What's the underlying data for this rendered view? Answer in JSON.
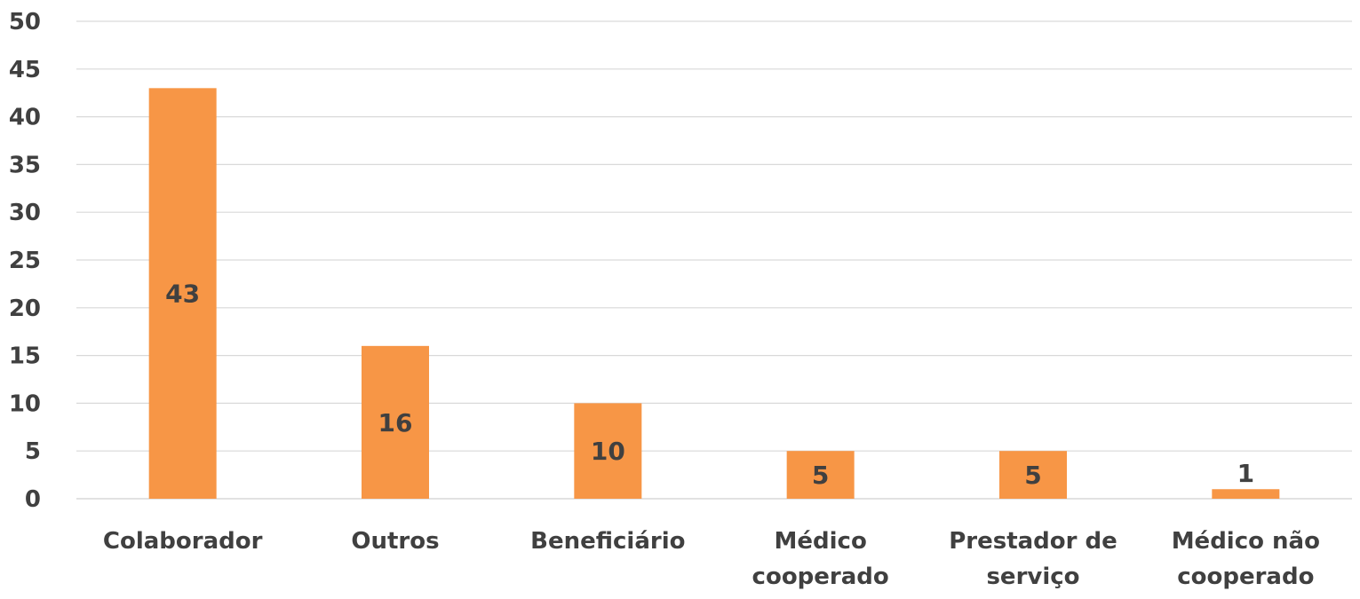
{
  "chart_data": {
    "type": "bar",
    "title": "",
    "xlabel": "",
    "ylabel": "",
    "categories": [
      "Colaborador",
      "Outros",
      "Beneficiário",
      "Médico cooperado",
      "Prestador de serviço",
      "Médico não cooperado"
    ],
    "category_lines": [
      [
        "Colaborador"
      ],
      [
        "Outros"
      ],
      [
        "Beneficiário"
      ],
      [
        "Médico",
        "cooperado"
      ],
      [
        "Prestador de",
        "serviço"
      ],
      [
        "Médico não",
        "cooperado"
      ]
    ],
    "values": [
      43,
      16,
      10,
      5,
      5,
      1
    ],
    "data_labels": [
      "43",
      "16",
      "10",
      "5",
      "5",
      "1"
    ],
    "ylim": [
      0,
      50
    ],
    "y_ticks": [
      0,
      5,
      10,
      15,
      20,
      25,
      30,
      35,
      40,
      45,
      50
    ],
    "y_tick_labels": [
      "0",
      "5",
      "10",
      "15",
      "20",
      "25",
      "30",
      "35",
      "40",
      "45",
      "50"
    ],
    "grid": true,
    "legend": "none",
    "colors": {
      "bar": "#F79646",
      "grid": "#D9D9D9",
      "text": "#404040"
    }
  }
}
